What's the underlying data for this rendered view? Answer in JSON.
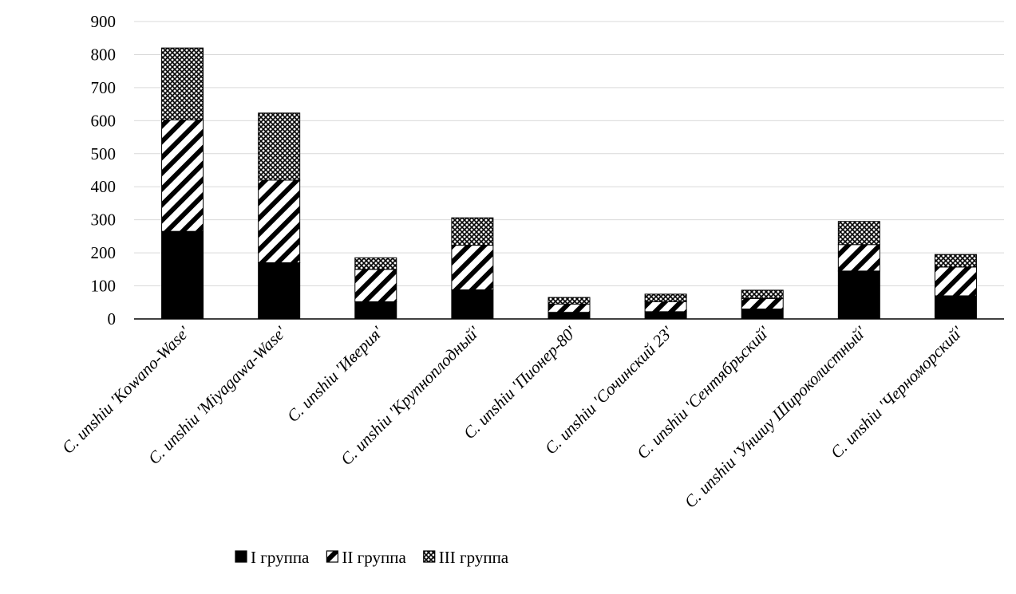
{
  "chart_data": {
    "type": "bar",
    "stacked": true,
    "title": "",
    "xlabel": "",
    "ylabel": "",
    "ylim": [
      0,
      900
    ],
    "yticks": [
      0,
      100,
      200,
      300,
      400,
      500,
      600,
      700,
      800,
      900
    ],
    "grid": true,
    "legend_position": "bottom",
    "categories": [
      {
        "prefix": "C. unshiu ",
        "name": "'Kowano-Wase'"
      },
      {
        "prefix": "C. unshiu ",
        "name": "'Miyagawa-Wase'"
      },
      {
        "prefix": "C. unshiu ",
        "name": "'Иверия'"
      },
      {
        "prefix": "C. unshiu ",
        "name": "'Крупноплодный'"
      },
      {
        "prefix": "C. unshiu ",
        "name": "'Пионер-80'"
      },
      {
        "prefix": "C. unshiu ",
        "name": "'Сочинский 23'"
      },
      {
        "prefix": "C. unshiu ",
        "name": "'Сентябрьский'"
      },
      {
        "prefix": "C. unshiu ",
        "name": "'Уншиу Широколистный'"
      },
      {
        "prefix": "C. unshiu ",
        "name": "'Черноморский'"
      }
    ],
    "series": [
      {
        "name": "I группа",
        "pattern": "solid",
        "values": [
          265,
          170,
          52,
          88,
          20,
          22,
          30,
          145,
          70
        ]
      },
      {
        "name": "II группа",
        "pattern": "hatch",
        "values": [
          337,
          250,
          98,
          135,
          25,
          30,
          32,
          80,
          87
        ]
      },
      {
        "name": "III группа",
        "pattern": "crosshatch",
        "values": [
          218,
          203,
          35,
          83,
          20,
          23,
          25,
          70,
          38
        ]
      }
    ]
  }
}
